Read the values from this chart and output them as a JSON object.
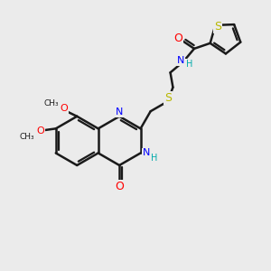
{
  "bg_color": "#ebebeb",
  "bond_color": "#1a1a1a",
  "bond_width": 1.8,
  "atom_colors": {
    "O": "#ff0000",
    "N": "#0000ff",
    "S": "#b8b800",
    "H_cyan": "#00aaaa",
    "C": "#1a1a1a"
  },
  "font_size": 8,
  "fig_size": [
    3.0,
    3.0
  ],
  "dpi": 100,
  "xlim": [
    0,
    10
  ],
  "ylim": [
    0,
    10
  ]
}
